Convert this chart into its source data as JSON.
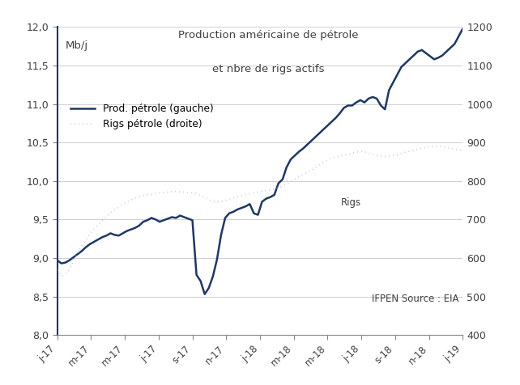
{
  "title_line1": "Production américaine de pétrole",
  "title_line2": "et nbre de rigs actifs",
  "ylabel_left": "Mb/j",
  "legend_prod": "Prod. pétrole (gauche)",
  "legend_rigs": "Rigs pétrole (droite)",
  "annotation": "Rigs",
  "source": "IFPEN Source : EIA",
  "ylim_left": [
    8.0,
    12.0
  ],
  "ylim_right": [
    400,
    1200
  ],
  "yticks_left": [
    8.0,
    8.5,
    9.0,
    9.5,
    10.0,
    10.5,
    11.0,
    11.5,
    12.0
  ],
  "yticks_right": [
    400,
    500,
    600,
    700,
    800,
    900,
    1000,
    1100,
    1200
  ],
  "xtick_labels": [
    "j-17",
    "m-17",
    "m-17",
    "j-17",
    "s-17",
    "n-17",
    "j-18",
    "m-18",
    "m-18",
    "j-18",
    "s-18",
    "n-18",
    "j-19"
  ],
  "prod_color": "#1f3864",
  "rigs_color": "#aec6e0",
  "bg_color": "#ffffff",
  "grid_color": "#c8c8c8",
  "spine_color": "#1f3864",
  "text_color": "#404040",
  "prod_data": [
    8.97,
    8.93,
    8.94,
    8.97,
    9.01,
    9.05,
    9.09,
    9.14,
    9.18,
    9.21,
    9.24,
    9.27,
    9.29,
    9.32,
    9.3,
    9.29,
    9.32,
    9.35,
    9.37,
    9.39,
    9.42,
    9.47,
    9.49,
    9.52,
    9.5,
    9.47,
    9.49,
    9.51,
    9.53,
    9.52,
    9.55,
    9.53,
    9.51,
    9.49,
    8.78,
    8.7,
    8.53,
    8.61,
    8.76,
    8.98,
    9.3,
    9.52,
    9.58,
    9.6,
    9.63,
    9.65,
    9.67,
    9.7,
    9.58,
    9.56,
    9.73,
    9.77,
    9.79,
    9.82,
    9.97,
    10.02,
    10.18,
    10.28,
    10.33,
    10.38,
    10.42,
    10.47,
    10.52,
    10.57,
    10.62,
    10.67,
    10.72,
    10.77,
    10.82,
    10.88,
    10.95,
    10.98,
    10.98,
    11.02,
    11.05,
    11.02,
    11.07,
    11.09,
    11.07,
    10.98,
    10.93,
    11.18,
    11.28,
    11.38,
    11.48,
    11.53,
    11.58,
    11.63,
    11.68,
    11.7,
    11.66,
    11.62,
    11.58,
    11.6,
    11.63,
    11.68,
    11.73,
    11.78,
    11.88,
    11.98
  ],
  "rigs_data": [
    568,
    553,
    558,
    572,
    592,
    612,
    632,
    647,
    662,
    675,
    687,
    697,
    707,
    717,
    725,
    732,
    739,
    745,
    751,
    755,
    759,
    762,
    764,
    765,
    767,
    769,
    770,
    771,
    772,
    773,
    772,
    771,
    770,
    769,
    767,
    762,
    757,
    752,
    747,
    745,
    747,
    749,
    752,
    755,
    759,
    762,
    765,
    767,
    769,
    771,
    773,
    775,
    777,
    779,
    782,
    787,
    792,
    797,
    805,
    812,
    817,
    822,
    827,
    835,
    842,
    849,
    855,
    859,
    862,
    865,
    867,
    869,
    872,
    875,
    877,
    875,
    872,
    869,
    867,
    865,
    863,
    865,
    867,
    869,
    872,
    875,
    877,
    879,
    882,
    885,
    887,
    889,
    890,
    891,
    889,
    887,
    885,
    883,
    881,
    879
  ]
}
